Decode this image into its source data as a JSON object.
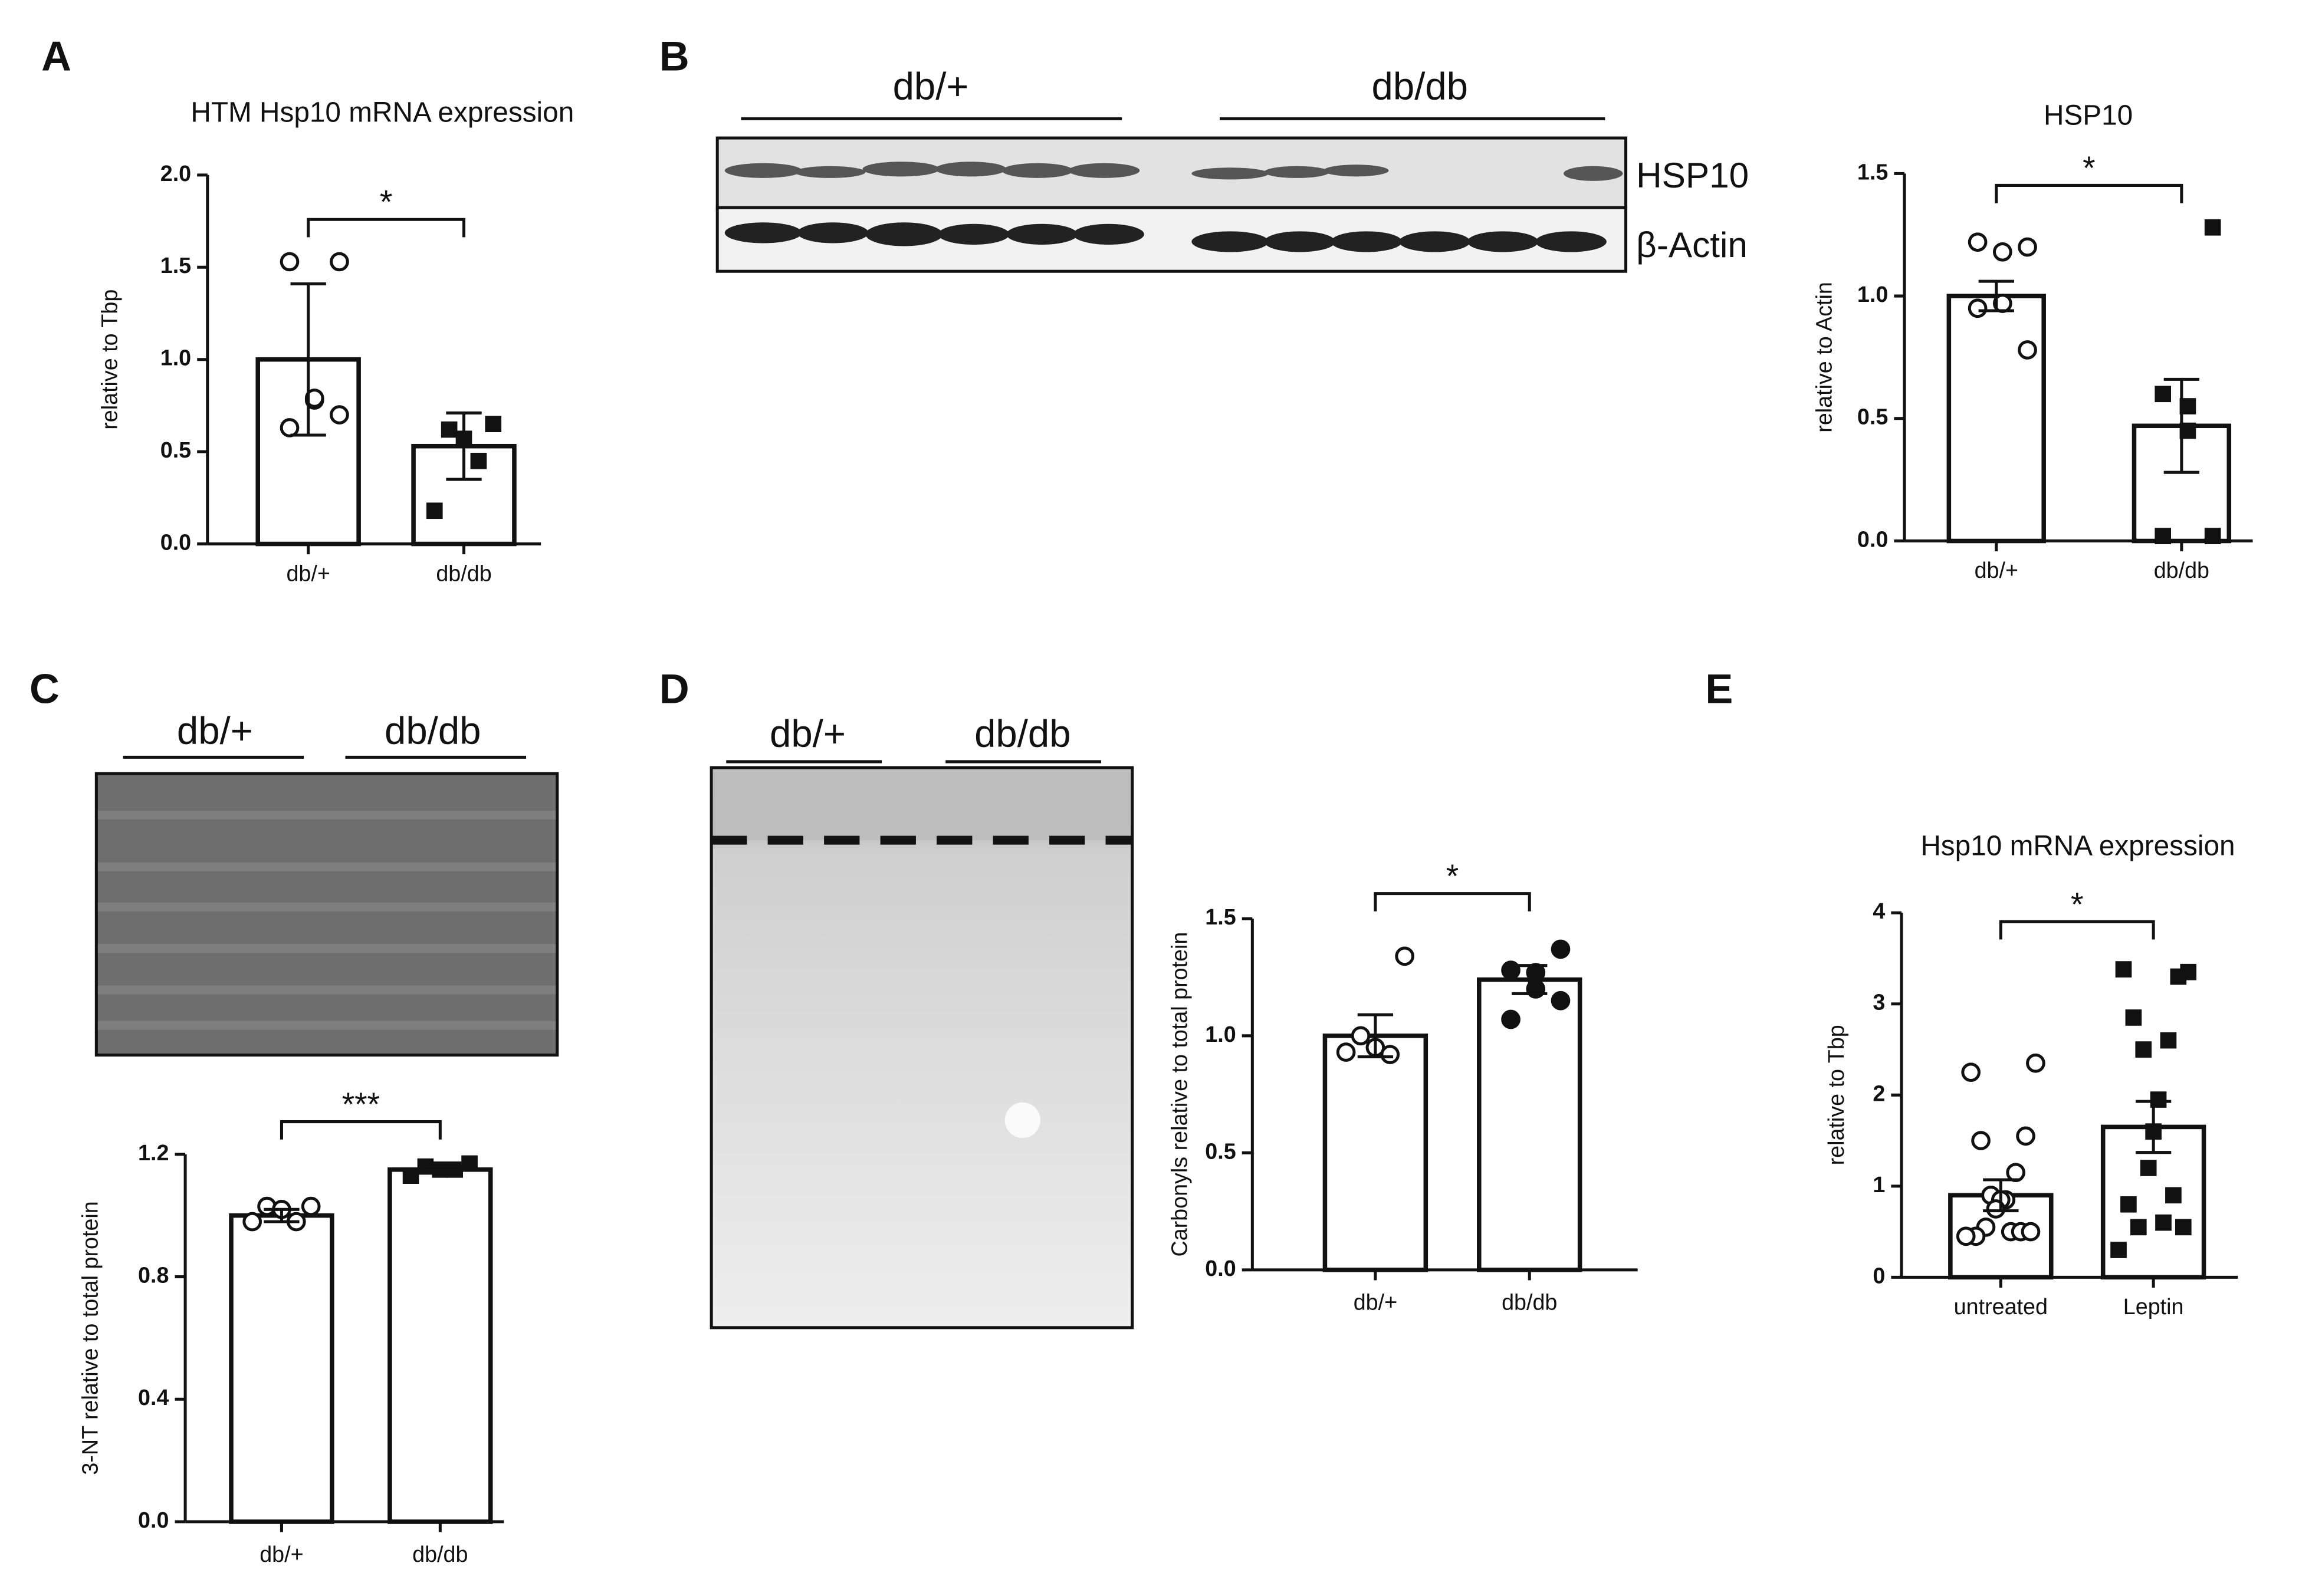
{
  "chart_data": [
    {
      "type": "bar",
      "panel": "A",
      "title": "HTM Hsp10 mRNA expression",
      "ylabel": "relative to Tbp",
      "categories": [
        "db/+",
        "db/db"
      ],
      "values": [
        1.0,
        0.53
      ],
      "errors": [
        0.41,
        0.18
      ],
      "points": [
        [
          1.53,
          1.53,
          0.78,
          0.79,
          0.63,
          0.7
        ],
        [
          0.65,
          0.62,
          0.57,
          0.45,
          0.18
        ]
      ],
      "markers": [
        "open-circle",
        "square"
      ],
      "significance": "*",
      "ylim": [
        0,
        2
      ],
      "yticks": [
        {
          "value": 0,
          "label": "0.0"
        },
        {
          "value": 0.5,
          "label": "0.5"
        },
        {
          "value": 1,
          "label": "1.0"
        },
        {
          "value": 1.5,
          "label": "1.5"
        },
        {
          "value": 2,
          "label": "2.0"
        }
      ],
      "color": "#111111"
    },
    {
      "type": "bar",
      "panel": "B",
      "title": "HSP10",
      "ylabel": "relative to Actin",
      "categories": [
        "db/+",
        "db/db"
      ],
      "values": [
        1.0,
        0.47
      ],
      "errors": [
        0.06,
        0.19
      ],
      "points": [
        [
          1.2,
          1.22,
          1.18,
          0.97,
          0.95,
          0.78
        ],
        [
          1.28,
          0.6,
          0.55,
          0.45,
          0.02,
          0.02
        ]
      ],
      "markers": [
        "open-circle",
        "square"
      ],
      "significance": "*",
      "ylim": [
        0,
        1.5
      ],
      "yticks": [
        {
          "value": 0,
          "label": "0.0"
        },
        0.5,
        {
          "value": 1,
          "label": "1.0"
        },
        1.5
      ],
      "color": "#111111"
    },
    {
      "type": "bar",
      "panel": "C",
      "ylabel": "3-NT relative to total protein",
      "categories": [
        "db/+",
        "db/db"
      ],
      "values": [
        1.0,
        1.15
      ],
      "errors": [
        0.02,
        0.01
      ],
      "points": [
        [
          1.03,
          1.03,
          1.02,
          0.98,
          0.98
        ],
        [
          1.17,
          1.16,
          1.15,
          1.15,
          1.13
        ]
      ],
      "markers": [
        "open-circle",
        "square"
      ],
      "significance": "***",
      "ylim": [
        0,
        1.2
      ],
      "yticks": [
        {
          "value": 0,
          "label": "0.0"
        },
        0.4,
        0.8,
        1.2
      ],
      "color": "#111111"
    },
    {
      "type": "bar",
      "panel": "D",
      "ylabel": "Carbonyls relative to total protein",
      "categories": [
        "db/+",
        "db/db"
      ],
      "values": [
        1.0,
        1.24
      ],
      "errors": [
        0.09,
        0.06
      ],
      "points": [
        [
          1.34,
          1.0,
          0.95,
          0.92,
          0.93
        ],
        [
          1.37,
          1.28,
          1.27,
          1.2,
          1.07,
          1.15
        ]
      ],
      "markers": [
        "open-circle",
        "circle"
      ],
      "significance": "*",
      "ylim": [
        0,
        1.5
      ],
      "yticks": [
        {
          "value": 0,
          "label": "0.0"
        },
        0.5,
        {
          "value": 1,
          "label": "1.0"
        },
        1.5
      ],
      "color": "#111111"
    },
    {
      "type": "bar",
      "panel": "E",
      "title": "Hsp10 mRNA expression",
      "ylabel": "relative to Tbp",
      "categories": [
        "untreated",
        "Leptin"
      ],
      "values": [
        0.9,
        1.65
      ],
      "errors": [
        0.17,
        0.28
      ],
      "points": [
        [
          2.35,
          2.25,
          1.55,
          1.5,
          1.15,
          0.9,
          0.85,
          0.85,
          0.75,
          0.5,
          0.55,
          0.5,
          0.45,
          0.5,
          0.45
        ],
        [
          3.35,
          3.38,
          3.3,
          2.85,
          2.6,
          2.5,
          1.95,
          1.6,
          1.2,
          0.6,
          0.55,
          0.9,
          0.8,
          0.55,
          0.3
        ]
      ],
      "markers": [
        "open-circle",
        "square"
      ],
      "significance": "*",
      "ylim": [
        0,
        4
      ],
      "yticks": [
        0,
        1,
        2,
        3,
        4
      ],
      "color": "#111111"
    }
  ],
  "blots": [
    {
      "groups": [
        "db/+",
        "db/db"
      ],
      "bands": [
        "HSP10",
        "β-Actin"
      ]
    },
    {
      "groups": [
        "db/+",
        "db/db"
      ]
    },
    {
      "groups": [
        "db/+",
        "db/db"
      ]
    }
  ]
}
